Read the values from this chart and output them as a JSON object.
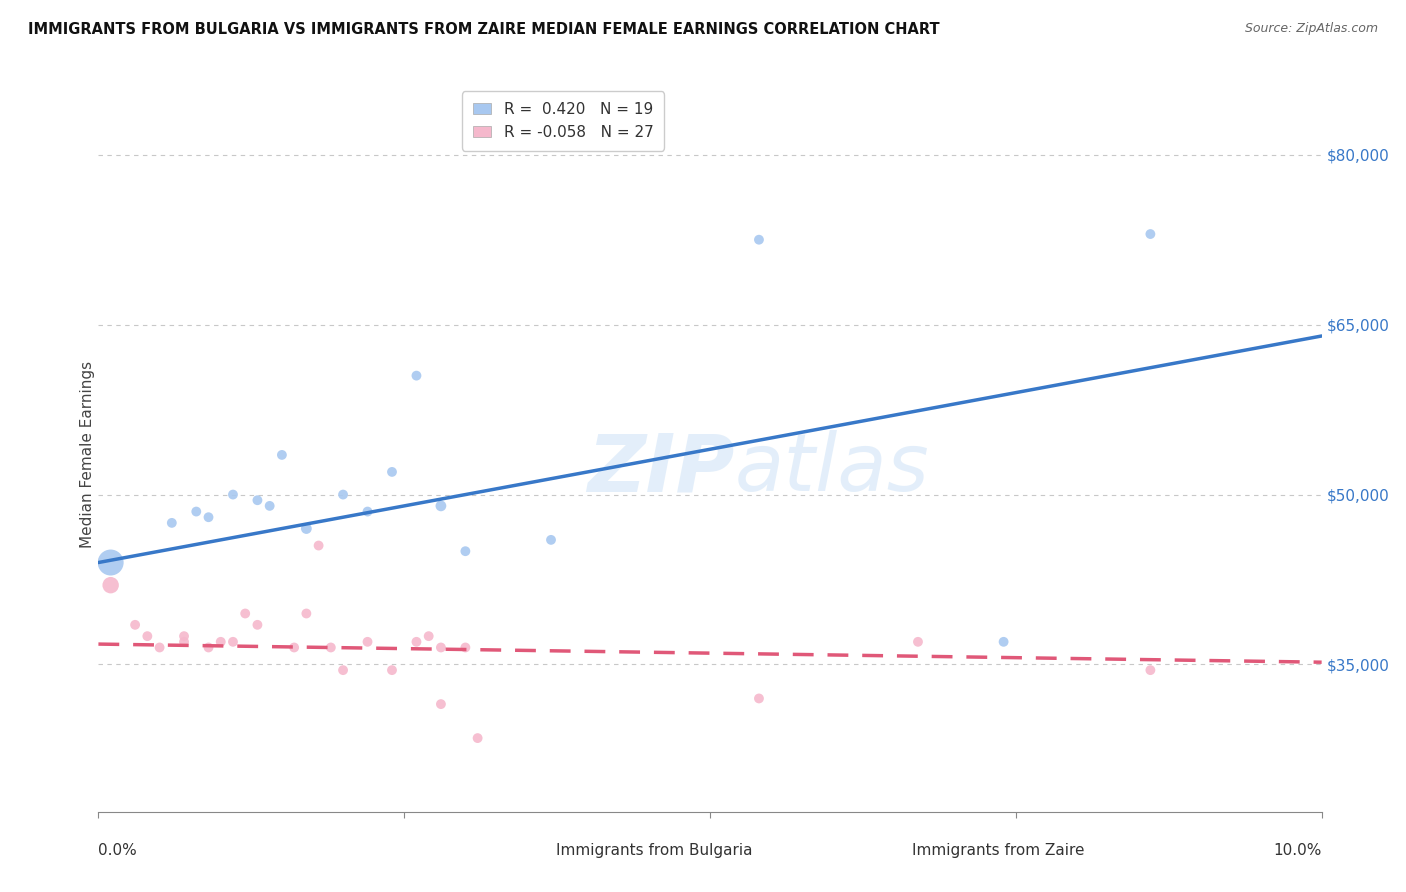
{
  "title": "IMMIGRANTS FROM BULGARIA VS IMMIGRANTS FROM ZAIRE MEDIAN FEMALE EARNINGS CORRELATION CHART",
  "source": "Source: ZipAtlas.com",
  "ylabel": "Median Female Earnings",
  "yticks": [
    35000,
    50000,
    65000,
    80000
  ],
  "ytick_labels": [
    "$35,000",
    "$50,000",
    "$65,000",
    "$80,000"
  ],
  "legend1_label": "Immigrants from Bulgaria",
  "legend2_label": "Immigrants from Zaire",
  "r1": "0.420",
  "n1": "19",
  "r2": "-0.058",
  "n2": "27",
  "bulgaria_color": "#a8c8f0",
  "zaire_color": "#f5b8cc",
  "line1_color": "#3878c8",
  "line2_color": "#e05878",
  "background_color": "#ffffff",
  "grid_color": "#c8c8c8",
  "watermark": "ZIPatlas",
  "xlim": [
    0.0,
    0.1
  ],
  "ylim": [
    22000,
    85000
  ],
  "bulgaria_x": [
    0.001,
    0.006,
    0.008,
    0.009,
    0.011,
    0.013,
    0.014,
    0.015,
    0.017,
    0.02,
    0.022,
    0.024,
    0.026,
    0.028,
    0.03,
    0.037,
    0.054,
    0.074,
    0.086
  ],
  "bulgaria_y": [
    44000,
    47500,
    48500,
    48000,
    50000,
    49500,
    49000,
    53500,
    47000,
    50000,
    48500,
    52000,
    60500,
    49000,
    45000,
    46000,
    72500,
    37000,
    73000
  ],
  "bulgaria_size": [
    350,
    50,
    50,
    50,
    50,
    50,
    50,
    50,
    60,
    50,
    50,
    50,
    50,
    60,
    50,
    50,
    50,
    50,
    50
  ],
  "zaire_x": [
    0.001,
    0.003,
    0.004,
    0.005,
    0.007,
    0.007,
    0.009,
    0.01,
    0.011,
    0.012,
    0.013,
    0.016,
    0.017,
    0.018,
    0.019,
    0.02,
    0.022,
    0.024,
    0.026,
    0.027,
    0.028,
    0.028,
    0.03,
    0.031,
    0.054,
    0.067,
    0.086
  ],
  "zaire_y": [
    42000,
    38500,
    37500,
    36500,
    37000,
    37500,
    36500,
    37000,
    37000,
    39500,
    38500,
    36500,
    39500,
    45500,
    36500,
    34500,
    37000,
    34500,
    37000,
    37500,
    36500,
    31500,
    36500,
    28500,
    32000,
    37000,
    34500
  ],
  "zaire_size": [
    140,
    50,
    50,
    50,
    50,
    50,
    50,
    50,
    50,
    50,
    50,
    50,
    50,
    50,
    50,
    50,
    50,
    50,
    50,
    50,
    50,
    50,
    50,
    50,
    50,
    50,
    50
  ],
  "blue_line_x": [
    0.0,
    0.1
  ],
  "blue_line_y": [
    44000,
    64000
  ],
  "pink_line_x": [
    0.0,
    0.1
  ],
  "pink_line_y": [
    36800,
    35200
  ]
}
